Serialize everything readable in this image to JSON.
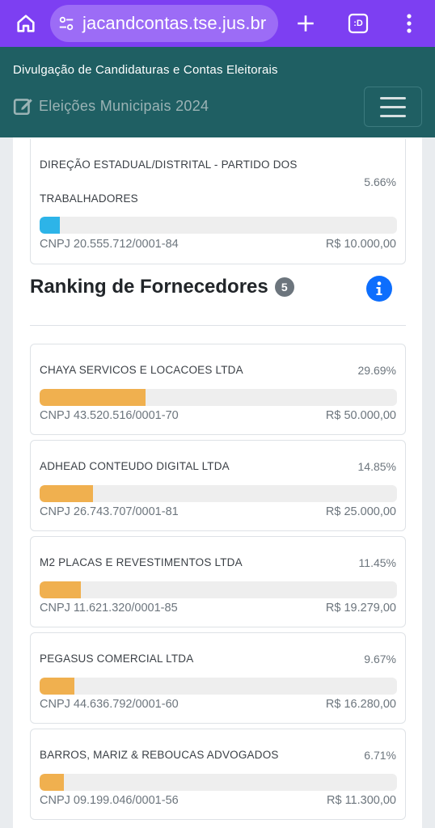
{
  "browser": {
    "url": "jacandcontas.tse.jus.br",
    "tab_count": ":D"
  },
  "header": {
    "title": "Divulgação de Candidaturas e Contas Eleitorais",
    "subtitle": "Eleições Municipais 2024"
  },
  "top_card": {
    "name_line1": "DIREÇÃO ESTADUAL/DISTRITAL - PARTIDO DOS",
    "name_line2": "TRABALHADORES",
    "percent": "5.66%",
    "fill": 0.0566,
    "cnpj": "CNPJ 20.555.712/0001-84",
    "value": "R$ 10.000,00",
    "bar_color": "#2db4e8"
  },
  "ranking": {
    "title": "Ranking de Fornecedores",
    "count": "5",
    "bar_color": "#f0b04f",
    "items": [
      {
        "name": "CHAYA SERVICOS E LOCACOES LTDA",
        "percent": "29.69%",
        "fill": 0.2969,
        "cnpj": "CNPJ 43.520.516/0001-70",
        "value": "R$ 50.000,00"
      },
      {
        "name": "ADHEAD CONTEUDO DIGITAL LTDA",
        "percent": "14.85%",
        "fill": 0.1485,
        "cnpj": "CNPJ 26.743.707/0001-81",
        "value": "R$ 25.000,00"
      },
      {
        "name": "M2 PLACAS E REVESTIMENTOS LTDA",
        "percent": "11.45%",
        "fill": 0.1145,
        "cnpj": "CNPJ 11.621.320/0001-85",
        "value": "R$ 19.279,00"
      },
      {
        "name": "PEGASUS COMERCIAL LTDA",
        "percent": "9.67%",
        "fill": 0.0967,
        "cnpj": "CNPJ 44.636.792/0001-60",
        "value": "R$ 16.280,00"
      },
      {
        "name": "BARROS, MARIZ & REBOUCAS ADVOGADOS",
        "percent": "6.71%",
        "fill": 0.0671,
        "cnpj": "CNPJ 09.199.046/0001-56",
        "value": "R$ 11.300,00"
      }
    ]
  }
}
